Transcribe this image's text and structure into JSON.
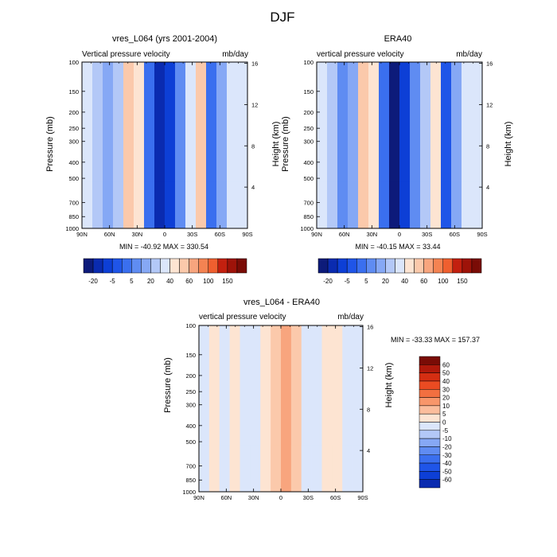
{
  "page": {
    "title": "DJF"
  },
  "colors": {
    "neg": [
      "#0d1b7a",
      "#0a2bb0",
      "#0d3fd6",
      "#1f55e8",
      "#3a6fef",
      "#5f8cf2",
      "#86a8f5",
      "#b3c8f7",
      "#dbe6fb"
    ],
    "pos": [
      "#fde4d2",
      "#fbc9ab",
      "#f8a57e",
      "#f48352",
      "#ef5f2f",
      "#e2381a",
      "#c3200f",
      "#9e1309",
      "#7a0c06"
    ]
  },
  "chart_data": [
    {
      "type": "heatmap",
      "title": "vres_L064 (yrs 2001-2004)",
      "variable_label": "Vertical pressure velocity",
      "units": "mb/day",
      "xlabel": "",
      "ylabel": "Pressure (mb)",
      "y2label": "Height (km)",
      "x_ticks": [
        "90N",
        "60N",
        "30N",
        "0",
        "30S",
        "60S",
        "90S"
      ],
      "y_ticks": [
        "100",
        "150",
        "200",
        "250",
        "300",
        "400",
        "500",
        "700",
        "850",
        "1000"
      ],
      "y_tick_values": [
        100,
        150,
        200,
        250,
        300,
        400,
        500,
        700,
        850,
        1000
      ],
      "y2_ticks": [
        "16",
        "12",
        "8",
        "4"
      ],
      "min": -40.92,
      "max": 330.54,
      "minmax_text": "MIN = -40.92  MAX = 330.54",
      "colorbar": {
        "orientation": "horizontal",
        "labels": [
          "-20",
          "-5",
          "5",
          "20",
          "40",
          "60",
          "100",
          "150"
        ],
        "colors": [
          "#0d1b7a",
          "#0a2bb0",
          "#0d3fd6",
          "#1f55e8",
          "#3a6fef",
          "#5f8cf2",
          "#86a8f5",
          "#b3c8f7",
          "#dbe6fb",
          "#fde4d2",
          "#fbc9ab",
          "#f8a57e",
          "#f48352",
          "#ef5f2f",
          "#c3200f",
          "#9e1309",
          "#7a0c06"
        ]
      },
      "columns": [
        {
          "lat": "90N",
          "value": -2
        },
        {
          "lat": "75N",
          "value": -6
        },
        {
          "lat": "60N",
          "value": -12
        },
        {
          "lat": "45N",
          "value": -8
        },
        {
          "lat": "30N",
          "value": 5
        },
        {
          "lat": "20N",
          "value": 2
        },
        {
          "lat": "10N",
          "value": -18
        },
        {
          "lat": "5N",
          "value": -35
        },
        {
          "lat": "0",
          "value": -28
        },
        {
          "lat": "10S",
          "value": -15
        },
        {
          "lat": "20S",
          "value": -4
        },
        {
          "lat": "30S",
          "value": 3
        },
        {
          "lat": "45S",
          "value": -22
        },
        {
          "lat": "55S",
          "value": -10
        },
        {
          "lat": "70S",
          "value": -2
        },
        {
          "lat": "90S",
          "value": -1
        }
      ]
    },
    {
      "type": "heatmap",
      "title": "ERA40",
      "variable_label": "vertical pressure velocity",
      "units": "mb/day",
      "xlabel": "",
      "ylabel": "Pressure (mb)",
      "y2label": "Height (km)",
      "x_ticks": [
        "90N",
        "60N",
        "30N",
        "0",
        "30S",
        "60S",
        "90S"
      ],
      "y_ticks": [
        "100",
        "150",
        "200",
        "250",
        "300",
        "400",
        "500",
        "700",
        "850",
        "1000"
      ],
      "y_tick_values": [
        100,
        150,
        200,
        250,
        300,
        400,
        500,
        700,
        850,
        1000
      ],
      "y2_ticks": [
        "16",
        "12",
        "8",
        "4"
      ],
      "min": -40.15,
      "max": 33.44,
      "minmax_text": "MIN = -40.15  MAX =  33.44",
      "colorbar": {
        "orientation": "horizontal",
        "labels": [
          "-20",
          "-5",
          "5",
          "20",
          "40",
          "60",
          "100",
          "150"
        ],
        "colors": [
          "#0d1b7a",
          "#0a2bb0",
          "#0d3fd6",
          "#1f55e8",
          "#3a6fef",
          "#5f8cf2",
          "#86a8f5",
          "#b3c8f7",
          "#dbe6fb",
          "#fde4d2",
          "#fbc9ab",
          "#f8a57e",
          "#f48352",
          "#ef5f2f",
          "#c3200f",
          "#9e1309",
          "#7a0c06"
        ]
      },
      "columns": [
        {
          "lat": "90N",
          "value": -2
        },
        {
          "lat": "75N",
          "value": -8
        },
        {
          "lat": "60N",
          "value": -14
        },
        {
          "lat": "45N",
          "value": -9
        },
        {
          "lat": "30N",
          "value": 4
        },
        {
          "lat": "20N",
          "value": 1
        },
        {
          "lat": "10N",
          "value": -20
        },
        {
          "lat": "5N",
          "value": -38
        },
        {
          "lat": "0",
          "value": -30
        },
        {
          "lat": "10S",
          "value": -16
        },
        {
          "lat": "20S",
          "value": -5
        },
        {
          "lat": "30S",
          "value": 2
        },
        {
          "lat": "45S",
          "value": -24
        },
        {
          "lat": "55S",
          "value": -11
        },
        {
          "lat": "70S",
          "value": -3
        },
        {
          "lat": "90S",
          "value": -1
        }
      ]
    },
    {
      "type": "heatmap",
      "title": "vres_L064 - ERA40",
      "variable_label": "vertical pressure velocity",
      "units": "mb/day",
      "xlabel": "",
      "ylabel": "Pressure (mb)",
      "y2label": "Height (km)",
      "x_ticks": [
        "90N",
        "60N",
        "30N",
        "0",
        "30S",
        "60S",
        "90S"
      ],
      "y_ticks": [
        "100",
        "150",
        "200",
        "250",
        "300",
        "400",
        "500",
        "700",
        "850",
        "1000"
      ],
      "y_tick_values": [
        100,
        150,
        200,
        250,
        300,
        400,
        500,
        700,
        850,
        1000
      ],
      "y2_ticks": [
        "16",
        "12",
        "8",
        "4"
      ],
      "min": -33.33,
      "max": 157.37,
      "minmax_text": "MIN = -33.33  MAX = 157.37",
      "colorbar": {
        "orientation": "vertical",
        "labels": [
          "60",
          "50",
          "40",
          "30",
          "20",
          "10",
          "5",
          "0",
          "-5",
          "-10",
          "-20",
          "-30",
          "-40",
          "-50",
          "-60"
        ],
        "colors": [
          "#7a0c06",
          "#b0190b",
          "#d42e12",
          "#ea4b22",
          "#f26f40",
          "#f8966a",
          "#fbbd9c",
          "#fde4d2",
          "#dbe6fb",
          "#b3c8f7",
          "#86a8f5",
          "#5f8cf2",
          "#3a6fef",
          "#1f55e8",
          "#0d3fd6",
          "#0a2bb0"
        ]
      },
      "columns": [
        {
          "lat": "90N",
          "value": -1
        },
        {
          "lat": "75N",
          "value": 1
        },
        {
          "lat": "60N",
          "value": -1
        },
        {
          "lat": "45N",
          "value": 2
        },
        {
          "lat": "30N",
          "value": -1
        },
        {
          "lat": "20N",
          "value": -2
        },
        {
          "lat": "10N",
          "value": 1
        },
        {
          "lat": "5N",
          "value": 3
        },
        {
          "lat": "0",
          "value": 6
        },
        {
          "lat": "10S",
          "value": 4
        },
        {
          "lat": "20S",
          "value": -1
        },
        {
          "lat": "30S",
          "value": -2
        },
        {
          "lat": "45S",
          "value": 2
        },
        {
          "lat": "55S",
          "value": 1
        },
        {
          "lat": "70S",
          "value": -1
        },
        {
          "lat": "90S",
          "value": -2
        }
      ]
    }
  ]
}
